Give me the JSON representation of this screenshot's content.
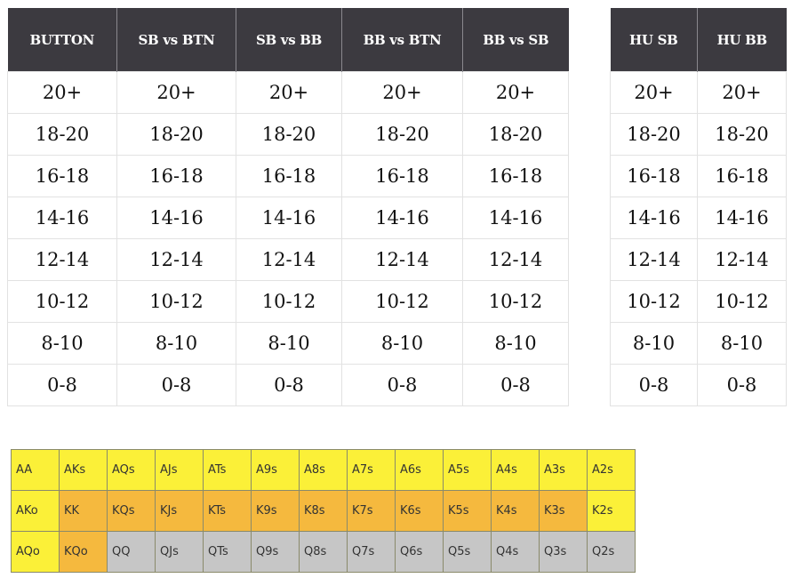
{
  "stack_table_main": {
    "headers": [
      "BUTTON",
      "SB vs BTN",
      "SB vs BB",
      "BB vs BTN",
      "BB vs SB"
    ],
    "rows": [
      [
        "20+",
        "20+",
        "20+",
        "20+",
        "20+"
      ],
      [
        "18-20",
        "18-20",
        "18-20",
        "18-20",
        "18-20"
      ],
      [
        "16-18",
        "16-18",
        "16-18",
        "16-18",
        "16-18"
      ],
      [
        "14-16",
        "14-16",
        "14-16",
        "14-16",
        "14-16"
      ],
      [
        "12-14",
        "12-14",
        "12-14",
        "12-14",
        "12-14"
      ],
      [
        "10-12",
        "10-12",
        "10-12",
        "10-12",
        "10-12"
      ],
      [
        "8-10",
        "8-10",
        "8-10",
        "8-10",
        "8-10"
      ],
      [
        "0-8",
        "0-8",
        "0-8",
        "0-8",
        "0-8"
      ]
    ]
  },
  "stack_table_hu": {
    "headers": [
      "HU SB",
      "HU BB"
    ],
    "rows": [
      [
        "20+",
        "20+"
      ],
      [
        "18-20",
        "18-20"
      ],
      [
        "16-18",
        "16-18"
      ],
      [
        "14-16",
        "14-16"
      ],
      [
        "12-14",
        "12-14"
      ],
      [
        "10-12",
        "10-12"
      ],
      [
        "8-10",
        "8-10"
      ],
      [
        "0-8",
        "0-8"
      ]
    ]
  },
  "colors": {
    "header_bg": "#3c3a40",
    "yellow": "#fbf038",
    "orange": "#f5b93e",
    "gray": "#c6c6c6"
  },
  "hand_grid": {
    "rows": [
      [
        {
          "hand": "AA",
          "color": "yellow"
        },
        {
          "hand": "AKs",
          "color": "yellow"
        },
        {
          "hand": "AQs",
          "color": "yellow"
        },
        {
          "hand": "AJs",
          "color": "yellow"
        },
        {
          "hand": "ATs",
          "color": "yellow"
        },
        {
          "hand": "A9s",
          "color": "yellow"
        },
        {
          "hand": "A8s",
          "color": "yellow"
        },
        {
          "hand": "A7s",
          "color": "yellow"
        },
        {
          "hand": "A6s",
          "color": "yellow"
        },
        {
          "hand": "A5s",
          "color": "yellow"
        },
        {
          "hand": "A4s",
          "color": "yellow"
        },
        {
          "hand": "A3s",
          "color": "yellow"
        },
        {
          "hand": "A2s",
          "color": "yellow"
        }
      ],
      [
        {
          "hand": "AKo",
          "color": "yellow"
        },
        {
          "hand": "KK",
          "color": "orange"
        },
        {
          "hand": "KQs",
          "color": "orange"
        },
        {
          "hand": "KJs",
          "color": "orange"
        },
        {
          "hand": "KTs",
          "color": "orange"
        },
        {
          "hand": "K9s",
          "color": "orange"
        },
        {
          "hand": "K8s",
          "color": "orange"
        },
        {
          "hand": "K7s",
          "color": "orange"
        },
        {
          "hand": "K6s",
          "color": "orange"
        },
        {
          "hand": "K5s",
          "color": "orange"
        },
        {
          "hand": "K4s",
          "color": "orange"
        },
        {
          "hand": "K3s",
          "color": "orange"
        },
        {
          "hand": "K2s",
          "color": "yellow"
        }
      ],
      [
        {
          "hand": "AQo",
          "color": "yellow"
        },
        {
          "hand": "KQo",
          "color": "orange"
        },
        {
          "hand": "QQ",
          "color": "gray"
        },
        {
          "hand": "QJs",
          "color": "gray"
        },
        {
          "hand": "QTs",
          "color": "gray"
        },
        {
          "hand": "Q9s",
          "color": "gray"
        },
        {
          "hand": "Q8s",
          "color": "gray"
        },
        {
          "hand": "Q7s",
          "color": "gray"
        },
        {
          "hand": "Q6s",
          "color": "gray"
        },
        {
          "hand": "Q5s",
          "color": "gray"
        },
        {
          "hand": "Q4s",
          "color": "gray"
        },
        {
          "hand": "Q3s",
          "color": "gray"
        },
        {
          "hand": "Q2s",
          "color": "gray"
        }
      ]
    ]
  }
}
